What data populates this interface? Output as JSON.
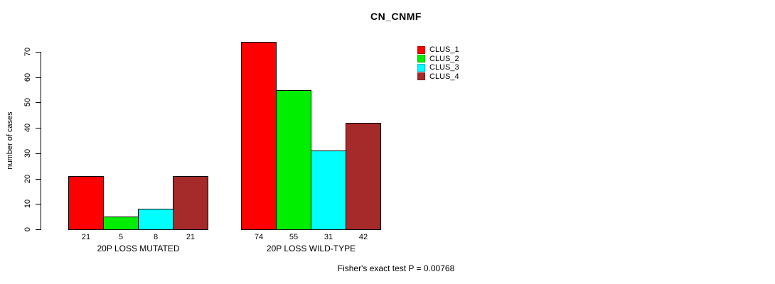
{
  "chart_data": {
    "type": "bar",
    "title": "CN_CNMF",
    "ylabel": "number of cases",
    "xlabel": "",
    "ylim": [
      0,
      70
    ],
    "yticks": [
      0,
      10,
      20,
      30,
      40,
      50,
      60,
      70
    ],
    "grid": false,
    "legend_position": "top-right",
    "categories": [
      "20P LOSS MUTATED",
      "20P LOSS WILD-TYPE"
    ],
    "series": [
      {
        "name": "CLUS_1",
        "color": "#FF0000",
        "values": [
          21,
          74
        ]
      },
      {
        "name": "CLUS_2",
        "color": "#00EE00",
        "values": [
          5,
          55
        ]
      },
      {
        "name": "CLUS_3",
        "color": "#00FFFF",
        "values": [
          8,
          31
        ]
      },
      {
        "name": "CLUS_4",
        "color": "#A52A2A",
        "values": [
          21,
          42
        ]
      }
    ],
    "bar_value_labels": [
      [
        21,
        5,
        8,
        21
      ],
      [
        74,
        55,
        31,
        42
      ]
    ],
    "footnote": "Fisher's exact test P = 0.00768"
  }
}
